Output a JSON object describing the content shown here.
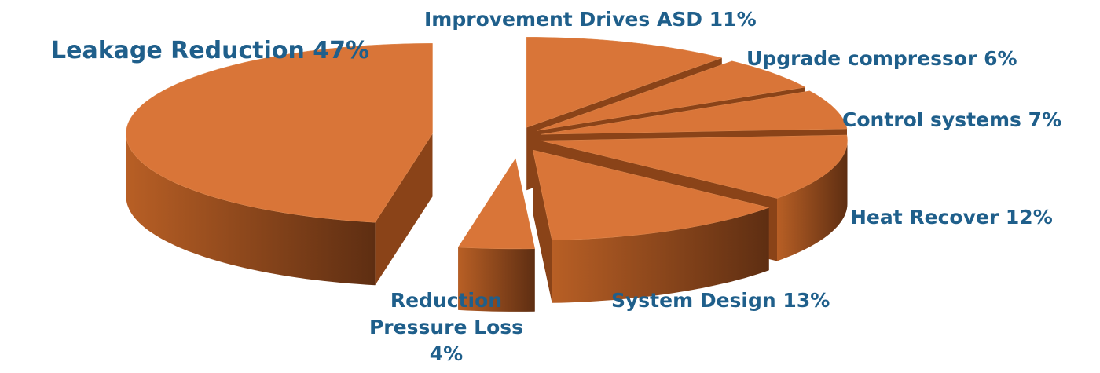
{
  "chart_data": {
    "type": "pie3d",
    "categories": [
      "Improvement Drives ASD",
      "Upgrade compressor",
      "Control systems",
      "Heat Recover",
      "System Design",
      "Reduction Pressure Loss",
      "Leakage Reduction"
    ],
    "values": [
      11,
      6,
      7,
      12,
      13,
      4,
      47
    ],
    "value_labels": [
      "11%",
      "6%",
      "7%",
      "12%",
      "13%",
      "4%",
      "47%"
    ],
    "color": "#d97538"
  }
}
